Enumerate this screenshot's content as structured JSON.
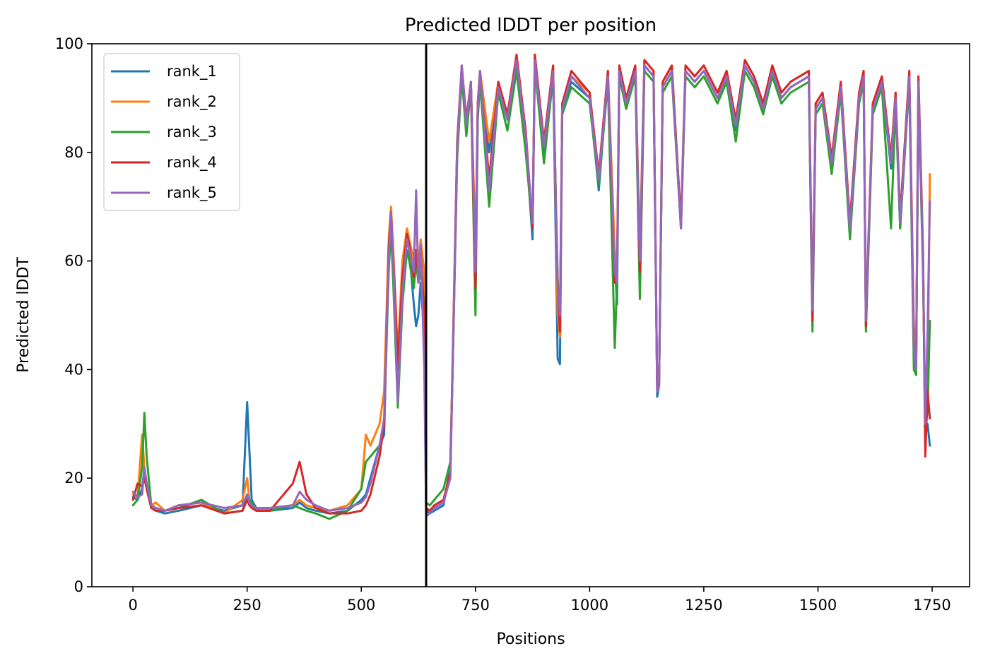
{
  "chart_data": {
    "type": "line",
    "title": "Predicted lDDT per position",
    "xlabel": "Positions",
    "ylabel": "Predicted lDDT",
    "xlim": [
      -90,
      1832
    ],
    "ylim": [
      0,
      100
    ],
    "xticks": [
      0,
      250,
      500,
      750,
      1000,
      1250,
      1500,
      1750
    ],
    "yticks": [
      0,
      20,
      40,
      60,
      80,
      100
    ],
    "grid": false,
    "legend_position": "top-left",
    "vertical_line": 642,
    "series": [
      {
        "name": "rank_1",
        "color": "#1f77b4"
      },
      {
        "name": "rank_2",
        "color": "#ff7f0e"
      },
      {
        "name": "rank_3",
        "color": "#2ca02c"
      },
      {
        "name": "rank_4",
        "color": "#d62728"
      },
      {
        "name": "rank_5",
        "color": "#9467bd"
      }
    ],
    "x": [
      0,
      10,
      20,
      25,
      30,
      40,
      50,
      70,
      100,
      150,
      200,
      240,
      250,
      255,
      260,
      270,
      300,
      350,
      365,
      380,
      400,
      430,
      470,
      500,
      510,
      520,
      540,
      550,
      560,
      565,
      570,
      580,
      590,
      600,
      605,
      615,
      620,
      625,
      630,
      638,
      642,
      650,
      660,
      680,
      695,
      700,
      710,
      720,
      730,
      740,
      750,
      755,
      760,
      780,
      800,
      820,
      840,
      860,
      875,
      880,
      900,
      920,
      930,
      935,
      940,
      960,
      1000,
      1020,
      1040,
      1055,
      1060,
      1065,
      1080,
      1100,
      1110,
      1120,
      1140,
      1148,
      1152,
      1160,
      1180,
      1200,
      1210,
      1230,
      1250,
      1280,
      1300,
      1320,
      1340,
      1360,
      1380,
      1400,
      1420,
      1440,
      1460,
      1480,
      1488,
      1495,
      1510,
      1530,
      1550,
      1570,
      1590,
      1600,
      1605,
      1620,
      1640,
      1660,
      1670,
      1680,
      1700,
      1710,
      1715,
      1720,
      1730,
      1735,
      1740,
      1745
    ],
    "values": {
      "rank_1": [
        16.5,
        16.0,
        18.0,
        22.0,
        19.0,
        14.5,
        14.0,
        13.5,
        14.0,
        15.0,
        14.0,
        15.0,
        34.0,
        25.0,
        16.0,
        14.5,
        14.0,
        14.5,
        15.5,
        14.5,
        14.0,
        13.5,
        14.0,
        16.0,
        17.0,
        20.0,
        26.0,
        28.0,
        61.0,
        68.0,
        60.0,
        40.0,
        55.0,
        65.0,
        62.0,
        52.0,
        48.0,
        50.0,
        56.0,
        46.0,
        14.0,
        13.5,
        14.0,
        15.0,
        22.0,
        40.0,
        80.0,
        95.0,
        85.0,
        93.0,
        60.0,
        88.0,
        94.0,
        80.0,
        92.0,
        86.0,
        96.0,
        82.0,
        64.0,
        97.0,
        80.0,
        95.0,
        42.0,
        41.0,
        88.0,
        93.0,
        90.0,
        73.0,
        94.0,
        60.0,
        52.0,
        95.0,
        89.0,
        95.0,
        60.0,
        96.0,
        94.0,
        35.0,
        37.0,
        92.0,
        95.0,
        66.0,
        95.0,
        93.0,
        95.0,
        90.0,
        94.0,
        84.0,
        96.0,
        93.0,
        88.0,
        95.0,
        90.0,
        92.0,
        93.0,
        94.0,
        50.0,
        88.0,
        90.0,
        77.0,
        92.0,
        65.0,
        90.0,
        94.0,
        48.0,
        88.0,
        93.0,
        77.0,
        90.0,
        66.0,
        94.0,
        46.0,
        40.0,
        93.0,
        60.0,
        28.0,
        30.0,
        26.0
      ],
      "rank_2": [
        17.0,
        16.5,
        28.0,
        22.0,
        18.0,
        15.0,
        15.5,
        14.0,
        15.0,
        15.5,
        13.5,
        16.0,
        20.0,
        16.0,
        15.0,
        14.0,
        14.5,
        15.0,
        16.0,
        15.0,
        14.5,
        14.0,
        15.0,
        18.0,
        28.0,
        26.0,
        30.0,
        36.0,
        64.0,
        70.0,
        62.0,
        43.0,
        60.0,
        66.0,
        64.0,
        60.0,
        70.0,
        58.0,
        64.0,
        58.0,
        14.5,
        14.0,
        15.0,
        16.0,
        21.0,
        42.0,
        82.0,
        96.0,
        86.0,
        93.0,
        62.0,
        89.0,
        95.0,
        82.0,
        93.0,
        87.0,
        97.0,
        84.0,
        66.0,
        98.0,
        82.0,
        96.0,
        50.0,
        46.0,
        89.0,
        94.0,
        91.0,
        75.0,
        95.0,
        62.0,
        58.0,
        96.0,
        90.0,
        96.0,
        62.0,
        97.0,
        95.0,
        36.0,
        37.0,
        93.0,
        96.0,
        67.0,
        96.0,
        94.0,
        96.0,
        91.0,
        95.0,
        86.0,
        97.0,
        94.0,
        89.0,
        96.0,
        91.0,
        93.0,
        94.0,
        95.0,
        52.0,
        89.0,
        91.0,
        79.0,
        93.0,
        67.0,
        91.0,
        95.0,
        50.0,
        89.0,
        94.0,
        79.0,
        91.0,
        68.0,
        95.0,
        48.0,
        41.0,
        94.0,
        62.0,
        27.0,
        34.0,
        76.0
      ],
      "rank_3": [
        15.0,
        16.0,
        22.0,
        32.0,
        24.0,
        15.0,
        14.5,
        14.0,
        14.5,
        16.0,
        13.5,
        14.0,
        17.0,
        16.0,
        15.5,
        14.0,
        14.0,
        15.0,
        14.5,
        14.0,
        13.5,
        12.5,
        14.0,
        18.0,
        23.0,
        24.0,
        26.0,
        30.0,
        58.0,
        66.0,
        56.0,
        33.0,
        52.0,
        62.0,
        60.0,
        55.0,
        60.0,
        56.0,
        58.0,
        52.0,
        15.5,
        15.0,
        16.0,
        18.0,
        23.0,
        40.0,
        79.0,
        94.0,
        83.0,
        92.0,
        50.0,
        86.0,
        93.0,
        70.0,
        91.0,
        84.0,
        95.0,
        80.0,
        66.0,
        96.0,
        78.0,
        94.0,
        57.0,
        48.0,
        87.0,
        92.0,
        89.0,
        74.0,
        93.0,
        44.0,
        56.0,
        94.0,
        88.0,
        94.0,
        53.0,
        95.0,
        93.0,
        36.0,
        37.0,
        91.0,
        94.0,
        66.0,
        94.0,
        92.0,
        94.0,
        89.0,
        93.0,
        82.0,
        95.0,
        92.0,
        87.0,
        94.0,
        89.0,
        91.0,
        92.0,
        93.0,
        47.0,
        87.0,
        89.0,
        76.0,
        91.0,
        64.0,
        89.0,
        93.0,
        47.0,
        87.0,
        92.0,
        66.0,
        89.0,
        66.0,
        93.0,
        40.0,
        39.0,
        92.0,
        58.0,
        30.0,
        32.0,
        49.0
      ],
      "rank_4": [
        16.0,
        19.0,
        18.5,
        20.0,
        18.0,
        14.5,
        14.0,
        14.0,
        14.5,
        15.0,
        13.5,
        14.0,
        16.0,
        15.0,
        14.5,
        14.0,
        14.0,
        19.0,
        23.0,
        17.0,
        14.5,
        13.5,
        13.5,
        14.0,
        15.0,
        17.0,
        24.0,
        30.0,
        62.0,
        69.0,
        61.0,
        41.0,
        57.0,
        65.0,
        63.0,
        57.0,
        62.0,
        57.0,
        62.0,
        50.0,
        14.5,
        14.0,
        15.0,
        16.0,
        21.0,
        41.0,
        82.0,
        96.0,
        86.0,
        93.0,
        55.0,
        89.0,
        95.0,
        75.0,
        93.0,
        87.0,
        98.0,
        84.0,
        66.0,
        98.0,
        82.0,
        96.0,
        55.0,
        47.0,
        89.0,
        95.0,
        91.0,
        76.0,
        95.0,
        56.0,
        58.0,
        96.0,
        90.0,
        96.0,
        58.0,
        97.0,
        95.0,
        36.0,
        37.0,
        93.0,
        96.0,
        67.0,
        96.0,
        94.0,
        96.0,
        91.0,
        95.0,
        86.0,
        97.0,
        94.0,
        89.0,
        96.0,
        91.0,
        93.0,
        94.0,
        95.0,
        49.0,
        89.0,
        91.0,
        79.0,
        93.0,
        67.0,
        91.0,
        95.0,
        48.0,
        89.0,
        94.0,
        79.0,
        91.0,
        68.0,
        95.0,
        45.0,
        41.0,
        94.0,
        62.0,
        24.0,
        36.0,
        31.0
      ],
      "rank_5": [
        17.5,
        16.5,
        17.0,
        22.0,
        19.0,
        15.0,
        14.5,
        14.0,
        15.0,
        15.5,
        14.5,
        15.0,
        17.0,
        15.5,
        15.0,
        14.5,
        14.5,
        15.0,
        17.5,
        16.0,
        15.0,
        14.0,
        14.5,
        15.5,
        16.5,
        19.0,
        26.0,
        31.0,
        60.0,
        69.0,
        60.0,
        34.0,
        54.0,
        64.0,
        62.0,
        58.0,
        73.0,
        56.0,
        63.0,
        40.0,
        13.0,
        13.5,
        14.5,
        15.5,
        20.0,
        40.0,
        81.0,
        96.0,
        85.0,
        93.0,
        58.0,
        88.0,
        95.0,
        73.0,
        92.0,
        86.0,
        97.0,
        83.0,
        67.0,
        97.0,
        81.0,
        95.0,
        55.0,
        50.0,
        88.0,
        94.0,
        90.0,
        75.0,
        94.0,
        58.0,
        56.0,
        95.0,
        89.0,
        95.0,
        60.0,
        96.0,
        94.0,
        36.0,
        37.0,
        92.0,
        95.0,
        66.0,
        95.0,
        93.0,
        95.0,
        90.0,
        94.0,
        85.0,
        96.0,
        93.0,
        88.0,
        95.0,
        90.0,
        92.0,
        93.0,
        94.0,
        51.0,
        88.0,
        90.0,
        78.0,
        92.0,
        66.0,
        90.0,
        94.0,
        49.0,
        88.0,
        93.0,
        78.0,
        90.0,
        67.0,
        94.0,
        44.0,
        40.0,
        93.0,
        61.0,
        30.0,
        47.0,
        71.0
      ]
    }
  }
}
